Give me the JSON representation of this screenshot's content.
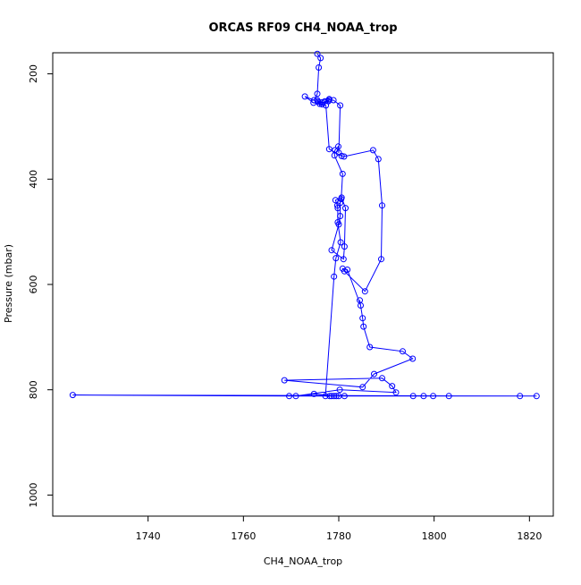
{
  "chart_data": {
    "type": "line",
    "title": "ORCAS RF09 CH4_NOAA_trop",
    "xlabel": "CH4_NOAA_trop",
    "ylabel": "Pressure (mbar)",
    "xlim": [
      1720,
      1825
    ],
    "ylim": [
      1040,
      160
    ],
    "y_inverted": true,
    "x_ticks": [
      1740,
      1760,
      1780,
      1800,
      1820
    ],
    "y_ticks": [
      200,
      400,
      600,
      800,
      1000
    ],
    "grid": false,
    "legend": "none",
    "series": [
      {
        "color": "#0000ff",
        "marker": "open-circle",
        "x": [
          1775.5,
          1776.2,
          1775.8,
          1775.5,
          1774.8,
          1772.9,
          1774.7,
          1776.5,
          1775.5,
          1778.0,
          1777.8,
          1776.5,
          1775.6,
          1776.0,
          1777.3,
          1778.0,
          1780.6,
          1781.1,
          1787.2,
          1788.3,
          1789.1,
          1788.9,
          1785.5,
          1781.2,
          1780.8,
          1781.8,
          1784.6,
          1784.4,
          1785.0,
          1785.2,
          1786.5,
          1793.4,
          1795.5,
          1787.4,
          1785.0,
          1768.6,
          1789.1,
          1791.2,
          1792.0,
          1780.2,
          1771.0,
          1774.8,
          1779.5,
          1795.6,
          1797.8,
          1799.8,
          1803.1,
          1818.0,
          1821.5,
          1724.2,
          1769.6,
          1780.0,
          1781.2,
          1779.0,
          1778.5,
          1778.1,
          1777.2,
          1779.0,
          1779.4,
          1780.4,
          1779.8,
          1779.8,
          1779.7,
          1779.3,
          1780.6,
          1781.4,
          1781.2,
          1781.0,
          1778.5,
          1780.0,
          1780.3,
          1780.3,
          1780.5,
          1780.8,
          1779.1,
          1779.2,
          1779.9,
          1780.0,
          1780.3,
          1778.9,
          1778.0,
          1777.1
        ],
        "y": [
          162,
          170,
          188,
          238,
          250,
          243,
          255,
          258,
          250,
          248,
          252,
          255,
          253,
          257,
          260,
          343,
          356,
          357,
          345,
          362,
          450,
          552,
          613,
          575,
          570,
          572,
          640,
          630,
          664,
          680,
          719,
          727,
          741,
          770,
          795,
          782,
          778,
          793,
          805,
          800,
          812,
          808,
          812,
          812,
          812,
          812,
          812,
          812,
          812,
          810,
          812,
          812,
          812,
          812,
          812,
          812,
          812,
          585,
          550,
          520,
          482,
          455,
          450,
          440,
          435,
          455,
          528,
          552,
          535,
          486,
          470,
          445,
          438,
          390,
          355,
          345,
          338,
          350,
          260,
          250,
          250,
          252
        ]
      }
    ]
  }
}
